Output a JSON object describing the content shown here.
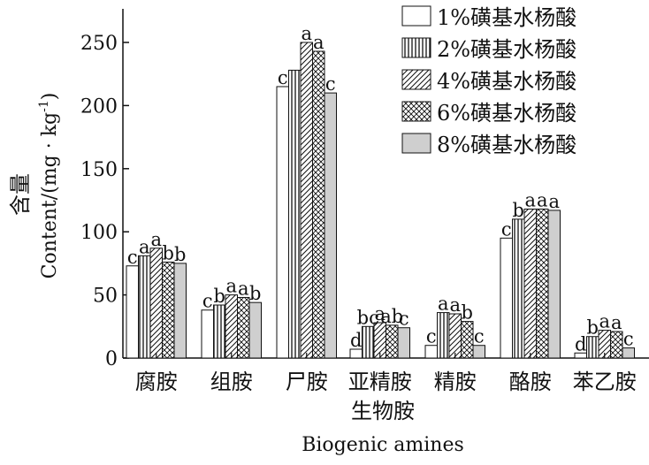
{
  "chart_data": {
    "type": "bar",
    "title": "",
    "xlabel_cn": "生物胺",
    "xlabel_en": "Biogenic amines",
    "ylabel_cn": "含量",
    "ylabel_en": "Content/(mg · kg",
    "ylabel_sup": "-1",
    "ylabel_end": ")",
    "ylim": [
      0,
      280
    ],
    "yticks": [
      0,
      50,
      100,
      150,
      200,
      250
    ],
    "categories": [
      "腐胺",
      "组胺",
      "尸胺",
      "亚精胺",
      "精胺",
      "酪胺",
      "苯乙胺"
    ],
    "legend_position": "top-right",
    "series": [
      {
        "name": "1%磺基水杨酸",
        "pattern": "white",
        "values": [
          73,
          38,
          215,
          7,
          10,
          95,
          4
        ],
        "labels": [
          "c",
          "c",
          "c",
          "d",
          "c",
          "c",
          "d"
        ]
      },
      {
        "name": "2%磺基水杨酸",
        "pattern": "vertical",
        "values": [
          81,
          42,
          228,
          25,
          36,
          110,
          17
        ],
        "labels": [
          "a",
          "b",
          "",
          "bc",
          "a",
          "b",
          "b"
        ]
      },
      {
        "name": "4%磺基水杨酸",
        "pattern": "diagonal",
        "values": [
          87,
          50,
          250,
          28,
          35,
          118,
          22
        ],
        "labels": [
          "a",
          "a",
          "a",
          "a",
          "a",
          "a",
          "a"
        ]
      },
      {
        "name": "6%磺基水杨酸",
        "pattern": "crosshatch",
        "values": [
          76,
          48,
          243,
          26,
          29,
          118,
          21
        ],
        "labels": [
          "b",
          "a",
          "a",
          "ab",
          "b",
          "a",
          "a"
        ]
      },
      {
        "name": "8%磺基水杨酸",
        "pattern": "gray",
        "values": [
          75,
          44,
          210,
          24,
          10,
          117,
          8
        ],
        "labels": [
          "b",
          "b",
          "c",
          "c",
          "c",
          "a",
          "c"
        ]
      }
    ]
  }
}
